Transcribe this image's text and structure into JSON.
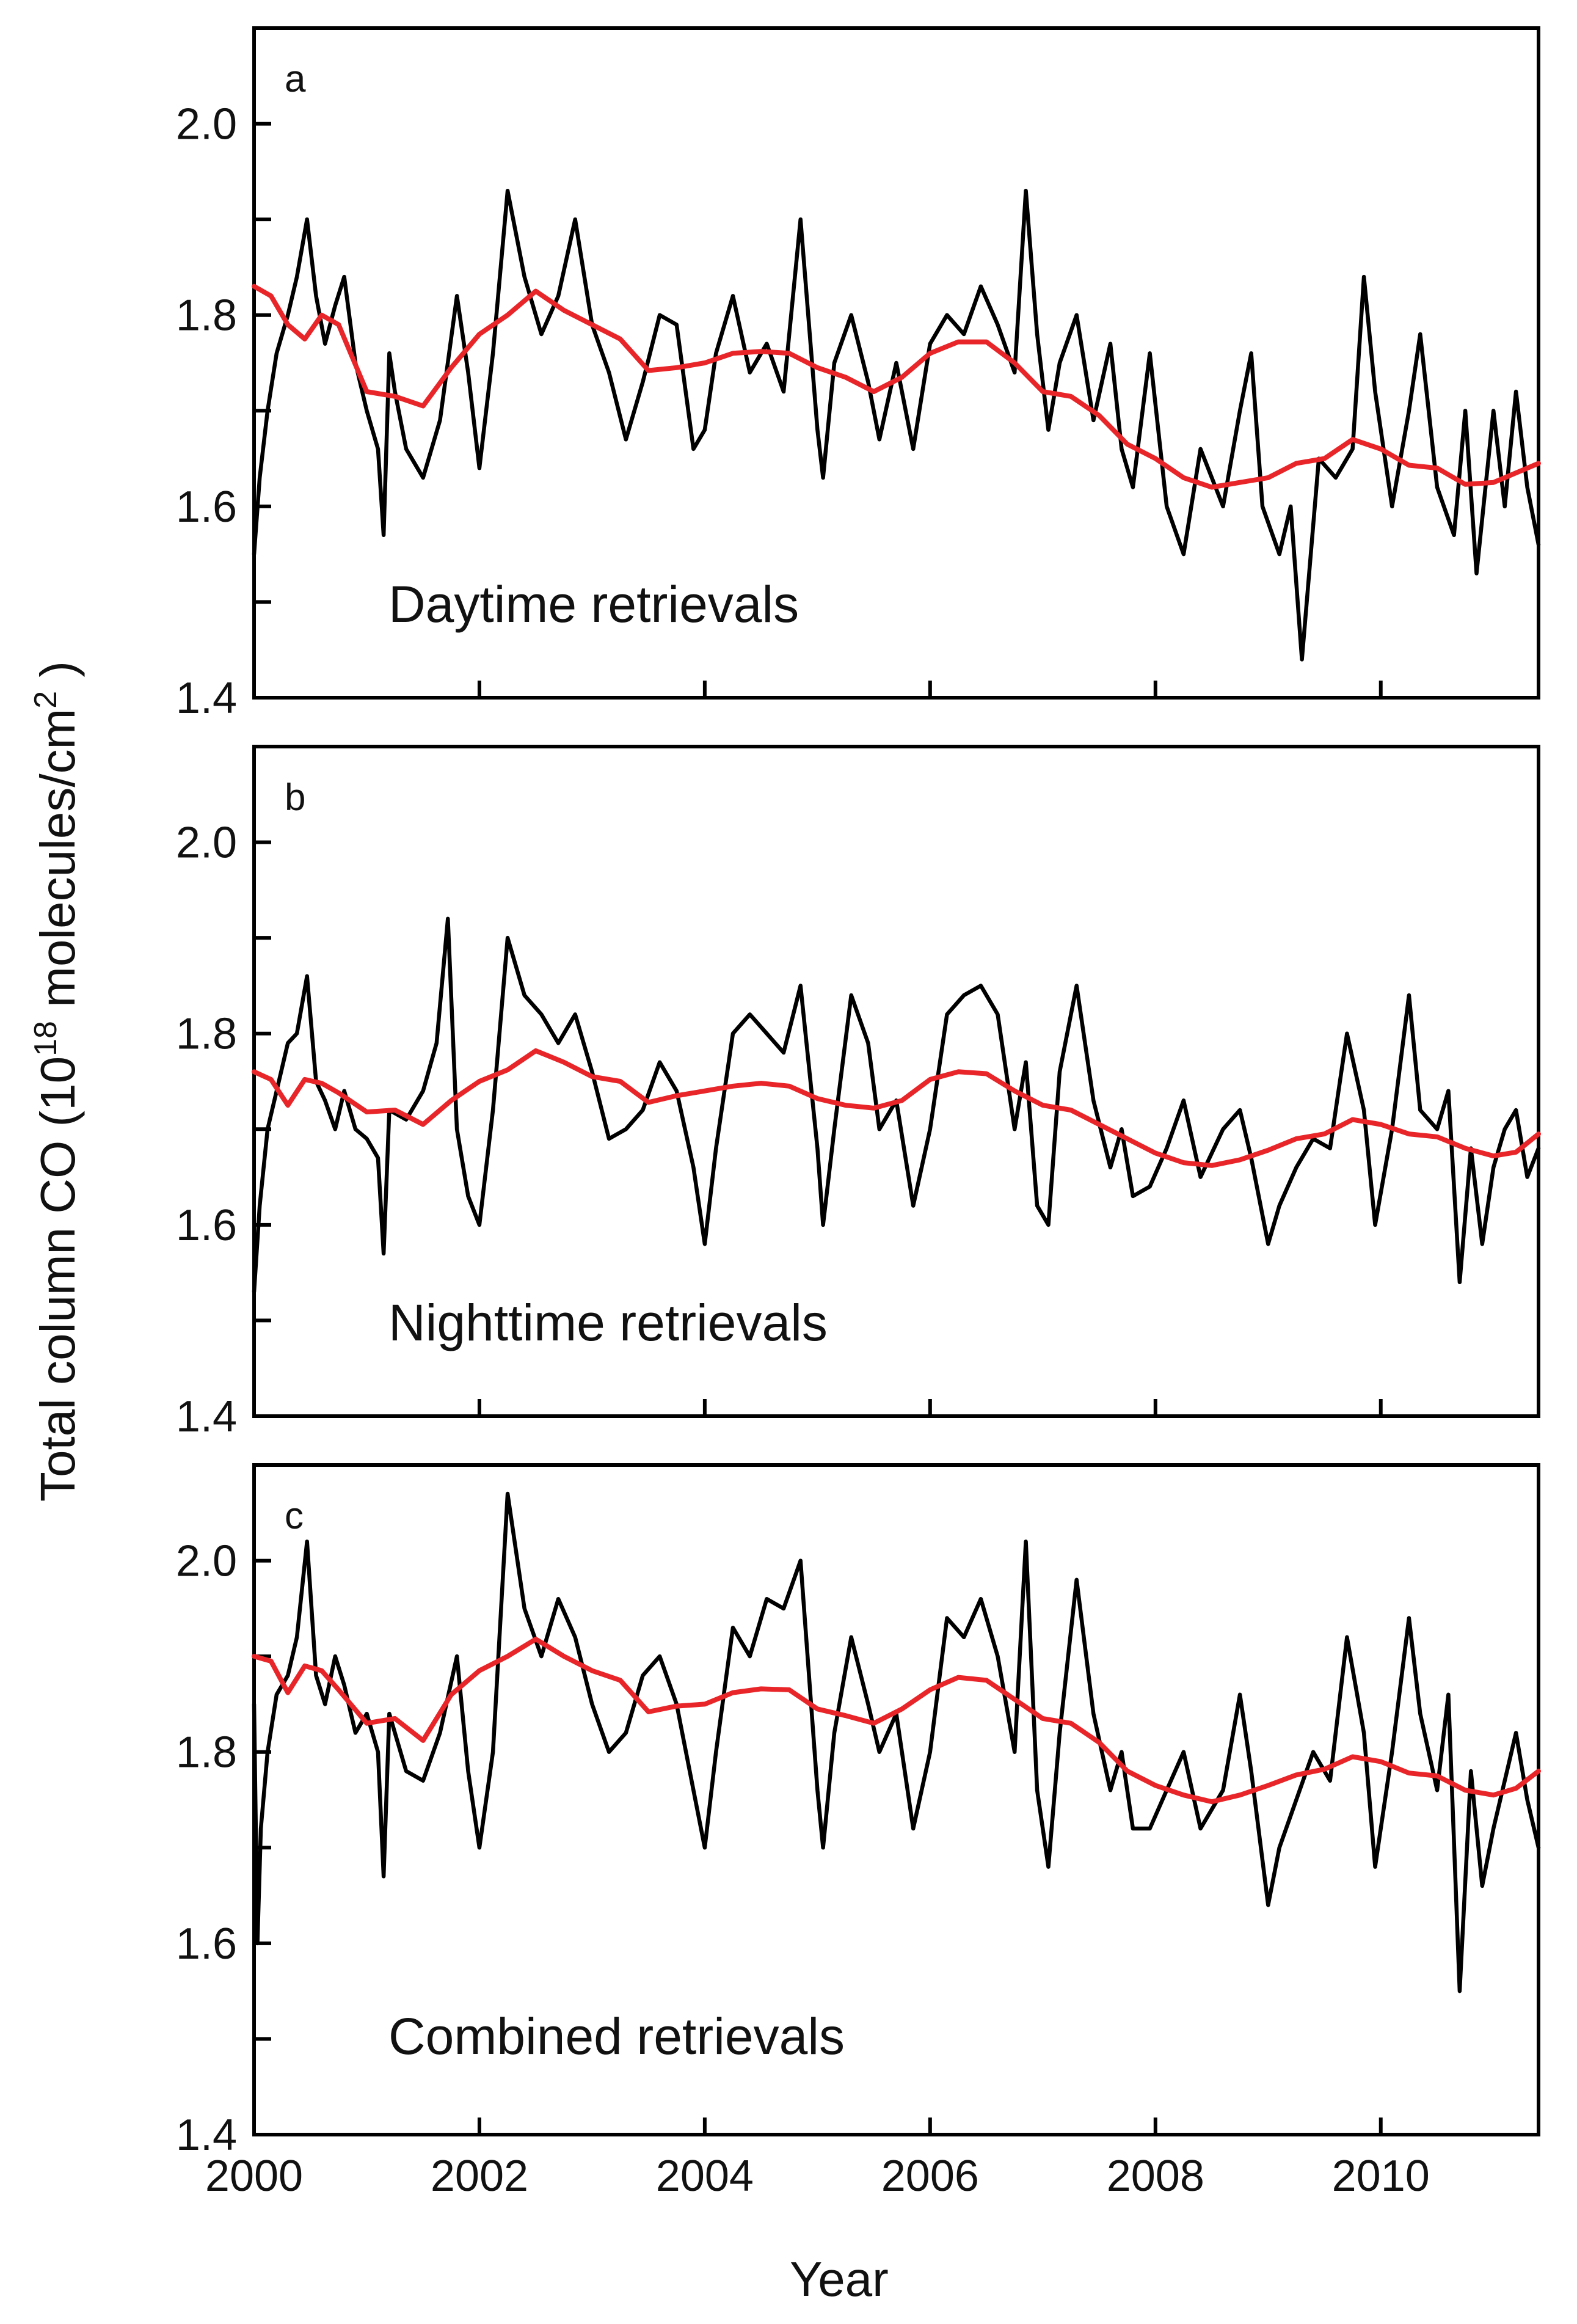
{
  "colors": {
    "raw": "#000000",
    "trend": "#e8262a"
  },
  "figure": {
    "xlabel": "Year",
    "ylabel_prefix": "Total column CO (10",
    "ylabel_sup1": "18",
    "ylabel_middle": " molecules/cm",
    "ylabel_sup2": "2",
    "ylabel_suffix": " )"
  },
  "chart_data": [
    {
      "type": "line",
      "panel": "a",
      "annotation": "Daytime retrievals",
      "xlabel": "Year",
      "ylabel": "Total column CO (10^18 molecules/cm^2)",
      "xlim": [
        2000,
        2011.4
      ],
      "ylim": [
        1.4,
        2.1
      ],
      "xticks": [
        2000,
        2002,
        2004,
        2006,
        2008,
        2010
      ],
      "xtick_labels": [
        "2000",
        "2002",
        "2004",
        "2006",
        "2008",
        "2010"
      ],
      "yticks": [
        1.4,
        1.5,
        1.6,
        1.7,
        1.8,
        1.9,
        2.0
      ],
      "ytick_labels": [
        "1.4",
        "1.6",
        "1.8",
        "2.0"
      ],
      "series": [
        {
          "name": "raw",
          "x": [
            2000,
            2000.05,
            2000.12,
            2000.2,
            2000.3,
            2000.38,
            2000.47,
            2000.55,
            2000.63,
            2000.72,
            2000.8,
            2000.9,
            2001.0,
            2001.1,
            2001.15,
            2001.2,
            2001.25,
            2001.35,
            2001.5,
            2001.65,
            2001.8,
            2001.9,
            2002.0,
            2002.12,
            2002.25,
            2002.4,
            2002.55,
            2002.7,
            2002.85,
            2003.0,
            2003.15,
            2003.3,
            2003.45,
            2003.6,
            2003.75,
            2003.9,
            2004.0,
            2004.1,
            2004.25,
            2004.4,
            2004.55,
            2004.7,
            2004.85,
            2005.0,
            2005.05,
            2005.15,
            2005.3,
            2005.45,
            2005.55,
            2005.7,
            2005.85,
            2006.0,
            2006.15,
            2006.3,
            2006.45,
            2006.6,
            2006.75,
            2006.85,
            2006.95,
            2007.05,
            2007.15,
            2007.3,
            2007.45,
            2007.6,
            2007.7,
            2007.8,
            2007.95,
            2008.1,
            2008.25,
            2008.4,
            2008.6,
            2008.75,
            2008.85,
            2008.95,
            2009.1,
            2009.2,
            2009.3,
            2009.45,
            2009.6,
            2009.75,
            2009.85,
            2009.95,
            2010.1,
            2010.25,
            2010.35,
            2010.5,
            2010.65,
            2010.75,
            2010.85,
            2011.0,
            2011.1,
            2011.2,
            2011.3,
            2011.4
          ],
          "values": [
            1.55,
            1.63,
            1.7,
            1.76,
            1.8,
            1.84,
            1.9,
            1.82,
            1.77,
            1.81,
            1.84,
            1.75,
            1.7,
            1.66,
            1.57,
            1.76,
            1.72,
            1.66,
            1.63,
            1.69,
            1.82,
            1.74,
            1.64,
            1.76,
            1.93,
            1.84,
            1.78,
            1.82,
            1.9,
            1.79,
            1.74,
            1.67,
            1.73,
            1.8,
            1.79,
            1.66,
            1.68,
            1.76,
            1.82,
            1.74,
            1.77,
            1.72,
            1.9,
            1.68,
            1.63,
            1.75,
            1.8,
            1.73,
            1.67,
            1.75,
            1.66,
            1.77,
            1.8,
            1.78,
            1.83,
            1.79,
            1.74,
            1.93,
            1.78,
            1.68,
            1.75,
            1.8,
            1.69,
            1.77,
            1.66,
            1.62,
            1.76,
            1.6,
            1.55,
            1.66,
            1.6,
            1.7,
            1.76,
            1.6,
            1.55,
            1.6,
            1.44,
            1.65,
            1.63,
            1.66,
            1.84,
            1.72,
            1.6,
            1.7,
            1.78,
            1.62,
            1.57,
            1.7,
            1.53,
            1.7,
            1.6,
            1.72,
            1.62,
            1.56
          ]
        },
        {
          "name": "trend",
          "x": [
            2000,
            2000.15,
            2000.3,
            2000.45,
            2000.6,
            2000.75,
            2001.0,
            2001.25,
            2001.5,
            2001.75,
            2002.0,
            2002.25,
            2002.5,
            2002.75,
            2003.0,
            2003.25,
            2003.5,
            2003.75,
            2004.0,
            2004.25,
            2004.5,
            2004.75,
            2005.0,
            2005.25,
            2005.5,
            2005.75,
            2006.0,
            2006.25,
            2006.5,
            2006.75,
            2007.0,
            2007.25,
            2007.5,
            2007.75,
            2008.0,
            2008.25,
            2008.5,
            2008.75,
            2009.0,
            2009.25,
            2009.5,
            2009.75,
            2010.0,
            2010.25,
            2010.5,
            2010.75,
            2011.0,
            2011.2,
            2011.4
          ],
          "values": [
            1.83,
            1.82,
            1.79,
            1.775,
            1.8,
            1.79,
            1.72,
            1.715,
            1.705,
            1.745,
            1.78,
            1.8,
            1.825,
            1.805,
            1.79,
            1.775,
            1.742,
            1.745,
            1.75,
            1.76,
            1.762,
            1.76,
            1.745,
            1.735,
            1.72,
            1.735,
            1.76,
            1.772,
            1.772,
            1.75,
            1.72,
            1.715,
            1.695,
            1.665,
            1.65,
            1.63,
            1.62,
            1.625,
            1.63,
            1.645,
            1.65,
            1.67,
            1.66,
            1.643,
            1.64,
            1.623,
            1.625,
            1.635,
            1.645
          ]
        }
      ]
    },
    {
      "type": "line",
      "panel": "b",
      "annotation": "Nighttime retrievals",
      "xlabel": "Year",
      "ylabel": "Total column CO (10^18 molecules/cm^2)",
      "xlim": [
        2000,
        2011.4
      ],
      "ylim": [
        1.4,
        2.1
      ],
      "xticks": [
        2000,
        2002,
        2004,
        2006,
        2008,
        2010
      ],
      "xtick_labels": [
        "2000",
        "2002",
        "2004",
        "2006",
        "2008",
        "2010"
      ],
      "yticks": [
        1.4,
        1.5,
        1.6,
        1.7,
        1.8,
        1.9,
        2.0
      ],
      "ytick_labels": [
        "1.4",
        "1.6",
        "1.8",
        "2.0"
      ],
      "series": [
        {
          "name": "raw",
          "x": [
            2000,
            2000.05,
            2000.12,
            2000.2,
            2000.3,
            2000.38,
            2000.47,
            2000.55,
            2000.63,
            2000.72,
            2000.8,
            2000.9,
            2001.0,
            2001.1,
            2001.15,
            2001.2,
            2001.35,
            2001.5,
            2001.62,
            2001.72,
            2001.8,
            2001.9,
            2002.0,
            2002.12,
            2002.25,
            2002.4,
            2002.55,
            2002.7,
            2002.85,
            2003.0,
            2003.15,
            2003.3,
            2003.45,
            2003.6,
            2003.75,
            2003.9,
            2004.0,
            2004.1,
            2004.25,
            2004.4,
            2004.55,
            2004.7,
            2004.85,
            2005.0,
            2005.05,
            2005.15,
            2005.3,
            2005.45,
            2005.55,
            2005.7,
            2005.85,
            2006.0,
            2006.15,
            2006.3,
            2006.45,
            2006.6,
            2006.75,
            2006.85,
            2006.95,
            2007.05,
            2007.15,
            2007.3,
            2007.45,
            2007.6,
            2007.7,
            2007.8,
            2007.95,
            2008.1,
            2008.25,
            2008.4,
            2008.6,
            2008.75,
            2008.85,
            2009.0,
            2009.1,
            2009.25,
            2009.4,
            2009.55,
            2009.7,
            2009.85,
            2009.95,
            2010.1,
            2010.25,
            2010.35,
            2010.5,
            2010.6,
            2010.7,
            2010.8,
            2010.9,
            2011.0,
            2011.1,
            2011.2,
            2011.3,
            2011.4
          ],
          "values": [
            1.53,
            1.62,
            1.7,
            1.74,
            1.79,
            1.8,
            1.86,
            1.75,
            1.73,
            1.7,
            1.74,
            1.7,
            1.69,
            1.67,
            1.57,
            1.72,
            1.71,
            1.74,
            1.79,
            1.92,
            1.7,
            1.63,
            1.6,
            1.72,
            1.9,
            1.84,
            1.82,
            1.79,
            1.82,
            1.76,
            1.69,
            1.7,
            1.72,
            1.77,
            1.74,
            1.66,
            1.58,
            1.68,
            1.8,
            1.82,
            1.8,
            1.78,
            1.85,
            1.68,
            1.6,
            1.7,
            1.84,
            1.79,
            1.7,
            1.73,
            1.62,
            1.7,
            1.82,
            1.84,
            1.85,
            1.82,
            1.7,
            1.77,
            1.62,
            1.6,
            1.76,
            1.85,
            1.73,
            1.66,
            1.7,
            1.63,
            1.64,
            1.68,
            1.73,
            1.65,
            1.7,
            1.72,
            1.67,
            1.58,
            1.62,
            1.66,
            1.69,
            1.68,
            1.8,
            1.72,
            1.6,
            1.7,
            1.84,
            1.72,
            1.7,
            1.74,
            1.54,
            1.68,
            1.58,
            1.66,
            1.7,
            1.72,
            1.65,
            1.68
          ]
        },
        {
          "name": "trend",
          "x": [
            2000,
            2000.15,
            2000.3,
            2000.45,
            2000.6,
            2000.75,
            2001.0,
            2001.25,
            2001.5,
            2001.75,
            2002.0,
            2002.25,
            2002.5,
            2002.75,
            2003.0,
            2003.25,
            2003.5,
            2003.75,
            2004.0,
            2004.25,
            2004.5,
            2004.75,
            2005.0,
            2005.25,
            2005.5,
            2005.75,
            2006.0,
            2006.25,
            2006.5,
            2006.75,
            2007.0,
            2007.25,
            2007.5,
            2007.75,
            2008.0,
            2008.25,
            2008.5,
            2008.75,
            2009.0,
            2009.25,
            2009.5,
            2009.75,
            2010.0,
            2010.25,
            2010.5,
            2010.75,
            2011.0,
            2011.2,
            2011.4
          ],
          "values": [
            1.76,
            1.752,
            1.725,
            1.752,
            1.748,
            1.738,
            1.718,
            1.72,
            1.705,
            1.73,
            1.75,
            1.762,
            1.782,
            1.77,
            1.755,
            1.75,
            1.728,
            1.735,
            1.74,
            1.745,
            1.748,
            1.745,
            1.732,
            1.725,
            1.722,
            1.73,
            1.752,
            1.76,
            1.758,
            1.74,
            1.725,
            1.72,
            1.705,
            1.69,
            1.675,
            1.665,
            1.662,
            1.668,
            1.678,
            1.69,
            1.695,
            1.71,
            1.705,
            1.695,
            1.692,
            1.68,
            1.672,
            1.676,
            1.695
          ]
        }
      ]
    },
    {
      "type": "line",
      "panel": "c",
      "annotation": "Combined retrievals",
      "xlabel": "Year",
      "ylabel": "Total column CO (10^18 molecules/cm^2)",
      "xlim": [
        2000,
        2011.4
      ],
      "ylim": [
        1.4,
        2.1
      ],
      "xticks": [
        2000,
        2002,
        2004,
        2006,
        2008,
        2010
      ],
      "xtick_labels": [
        "2000",
        "2002",
        "2004",
        "2006",
        "2008",
        "2010"
      ],
      "yticks": [
        1.4,
        1.5,
        1.6,
        1.7,
        1.8,
        1.9,
        2.0
      ],
      "ytick_labels": [
        "1.4",
        "1.6",
        "1.8",
        "2.0"
      ],
      "series": [
        {
          "name": "raw",
          "x": [
            2000,
            2000.03,
            2000.06,
            2000.12,
            2000.2,
            2000.3,
            2000.38,
            2000.47,
            2000.55,
            2000.63,
            2000.72,
            2000.8,
            2000.9,
            2001.0,
            2001.1,
            2001.15,
            2001.2,
            2001.35,
            2001.5,
            2001.65,
            2001.8,
            2001.9,
            2002.0,
            2002.12,
            2002.25,
            2002.4,
            2002.55,
            2002.7,
            2002.85,
            2003.0,
            2003.15,
            2003.3,
            2003.45,
            2003.6,
            2003.75,
            2003.9,
            2004.0,
            2004.1,
            2004.25,
            2004.4,
            2004.55,
            2004.7,
            2004.85,
            2005.0,
            2005.05,
            2005.15,
            2005.3,
            2005.45,
            2005.55,
            2005.7,
            2005.85,
            2006.0,
            2006.15,
            2006.3,
            2006.45,
            2006.6,
            2006.75,
            2006.85,
            2006.95,
            2007.05,
            2007.15,
            2007.3,
            2007.45,
            2007.6,
            2007.7,
            2007.8,
            2007.95,
            2008.1,
            2008.25,
            2008.4,
            2008.6,
            2008.75,
            2008.85,
            2009.0,
            2009.1,
            2009.25,
            2009.4,
            2009.55,
            2009.7,
            2009.85,
            2009.95,
            2010.1,
            2010.25,
            2010.35,
            2010.5,
            2010.6,
            2010.7,
            2010.8,
            2010.9,
            2011.0,
            2011.1,
            2011.2,
            2011.3,
            2011.4
          ],
          "values": [
            1.85,
            1.6,
            1.72,
            1.8,
            1.86,
            1.88,
            1.92,
            2.02,
            1.88,
            1.85,
            1.9,
            1.87,
            1.82,
            1.84,
            1.8,
            1.67,
            1.84,
            1.78,
            1.77,
            1.82,
            1.9,
            1.78,
            1.7,
            1.8,
            2.07,
            1.95,
            1.9,
            1.96,
            1.92,
            1.85,
            1.8,
            1.82,
            1.88,
            1.9,
            1.85,
            1.76,
            1.7,
            1.8,
            1.93,
            1.9,
            1.96,
            1.95,
            2.0,
            1.76,
            1.7,
            1.82,
            1.92,
            1.85,
            1.8,
            1.84,
            1.72,
            1.8,
            1.94,
            1.92,
            1.96,
            1.9,
            1.8,
            2.02,
            1.76,
            1.68,
            1.82,
            1.98,
            1.84,
            1.76,
            1.8,
            1.72,
            1.72,
            1.76,
            1.8,
            1.72,
            1.76,
            1.86,
            1.78,
            1.64,
            1.7,
            1.75,
            1.8,
            1.77,
            1.92,
            1.82,
            1.68,
            1.8,
            1.94,
            1.84,
            1.76,
            1.86,
            1.55,
            1.78,
            1.66,
            1.72,
            1.77,
            1.82,
            1.75,
            1.7
          ]
        },
        {
          "name": "trend",
          "x": [
            2000,
            2000.15,
            2000.3,
            2000.45,
            2000.6,
            2000.75,
            2001.0,
            2001.25,
            2001.5,
            2001.75,
            2002.0,
            2002.25,
            2002.5,
            2002.75,
            2003.0,
            2003.25,
            2003.5,
            2003.75,
            2004.0,
            2004.25,
            2004.5,
            2004.75,
            2005.0,
            2005.25,
            2005.5,
            2005.75,
            2006.0,
            2006.25,
            2006.5,
            2006.75,
            2007.0,
            2007.25,
            2007.5,
            2007.75,
            2008.0,
            2008.25,
            2008.5,
            2008.75,
            2009.0,
            2009.25,
            2009.5,
            2009.75,
            2010.0,
            2010.25,
            2010.5,
            2010.75,
            2011.0,
            2011.2,
            2011.4
          ],
          "values": [
            1.9,
            1.895,
            1.862,
            1.89,
            1.885,
            1.865,
            1.83,
            1.835,
            1.812,
            1.86,
            1.885,
            1.9,
            1.918,
            1.9,
            1.885,
            1.875,
            1.842,
            1.848,
            1.85,
            1.862,
            1.866,
            1.865,
            1.845,
            1.838,
            1.83,
            1.845,
            1.865,
            1.878,
            1.875,
            1.855,
            1.835,
            1.83,
            1.81,
            1.78,
            1.765,
            1.755,
            1.748,
            1.755,
            1.765,
            1.776,
            1.782,
            1.795,
            1.79,
            1.778,
            1.775,
            1.76,
            1.755,
            1.762,
            1.78
          ]
        }
      ]
    }
  ]
}
